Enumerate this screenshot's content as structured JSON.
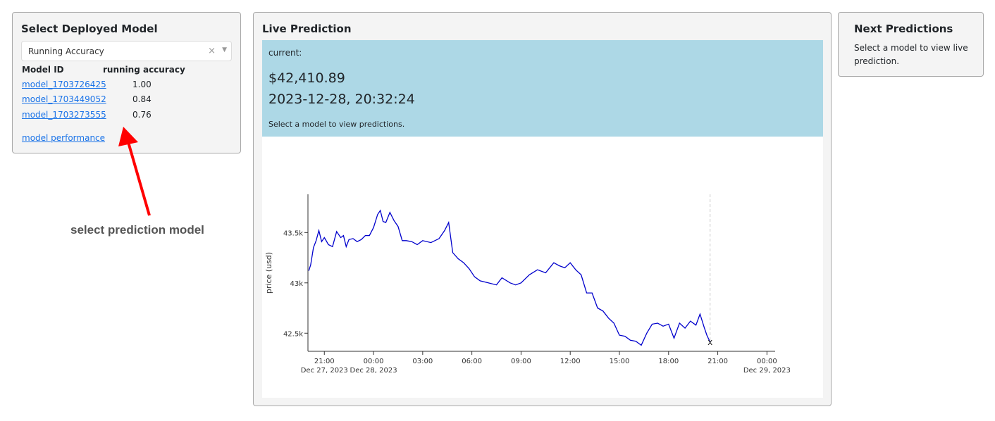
{
  "select_panel": {
    "title": "Select Deployed Model",
    "dropdown_value": "Running Accuracy",
    "clear_glyph": "×",
    "caret_glyph": "▼",
    "table_headers": [
      "Model ID",
      "running accuracy"
    ],
    "rows": [
      {
        "model_id": "model_1703726425",
        "accuracy": "1.00"
      },
      {
        "model_id": "model_1703449052",
        "accuracy": "0.84"
      },
      {
        "model_id": "model_1703273555",
        "accuracy": "0.76"
      }
    ],
    "performance_link": "model performance"
  },
  "annotation": {
    "text": "select prediction model",
    "arrow_color": "#ff0000"
  },
  "live_panel": {
    "title": "Live Prediction",
    "current_label": "current:",
    "price": "$42,410.89",
    "timestamp": "2023-12-28, 20:32:24",
    "message": "Select a model to view predictions.",
    "info_bg": "#add8e6"
  },
  "next_panel": {
    "title": "Next Predictions",
    "note": "Select a model to view live prediction."
  },
  "chart_data": {
    "type": "line",
    "ylabel": "price (usd)",
    "x_range": [
      "2023-12-27 20:00",
      "2023-12-29 00:30"
    ],
    "ylim": [
      42320,
      43880
    ],
    "y_ticks": [
      {
        "value": 42500,
        "label": "42.5k"
      },
      {
        "value": 43000,
        "label": "43k"
      },
      {
        "value": 43500,
        "label": "43.5k"
      }
    ],
    "x_ticks": [
      {
        "time": "2023-12-27 21:00",
        "label": "21:00",
        "sublabel": "Dec 27, 2023"
      },
      {
        "time": "2023-12-28 00:00",
        "label": "00:00",
        "sublabel": "Dec 28, 2023"
      },
      {
        "time": "2023-12-28 03:00",
        "label": "03:00",
        "sublabel": ""
      },
      {
        "time": "2023-12-28 06:00",
        "label": "06:00",
        "sublabel": ""
      },
      {
        "time": "2023-12-28 09:00",
        "label": "09:00",
        "sublabel": ""
      },
      {
        "time": "2023-12-28 12:00",
        "label": "12:00",
        "sublabel": ""
      },
      {
        "time": "2023-12-28 15:00",
        "label": "15:00",
        "sublabel": ""
      },
      {
        "time": "2023-12-28 18:00",
        "label": "18:00",
        "sublabel": ""
      },
      {
        "time": "2023-12-28 21:00",
        "label": "21:00",
        "sublabel": ""
      },
      {
        "time": "2023-12-29 00:00",
        "label": "00:00",
        "sublabel": "Dec 29, 2023"
      }
    ],
    "line_color": "#0000cc",
    "current_marker": {
      "time": "2023-12-28 20:32",
      "value": 42410.89,
      "symbol": "x"
    },
    "series": [
      {
        "x": [
          "2023-12-27 20:03",
          "2023-12-27 20:10",
          "2023-12-27 20:20",
          "2023-12-27 20:30",
          "2023-12-27 20:40",
          "2023-12-27 20:50",
          "2023-12-27 21:00",
          "2023-12-27 21:15",
          "2023-12-27 21:30",
          "2023-12-27 21:45",
          "2023-12-27 22:00",
          "2023-12-27 22:10",
          "2023-12-27 22:20",
          "2023-12-27 22:30",
          "2023-12-27 22:45",
          "2023-12-27 23:00",
          "2023-12-27 23:15",
          "2023-12-27 23:30",
          "2023-12-27 23:45",
          "2023-12-28 00:00",
          "2023-12-28 00:15",
          "2023-12-28 00:25",
          "2023-12-28 00:35",
          "2023-12-28 00:45",
          "2023-12-28 01:00",
          "2023-12-28 01:15",
          "2023-12-28 01:30",
          "2023-12-28 01:45",
          "2023-12-28 02:00",
          "2023-12-28 02:20",
          "2023-12-28 02:40",
          "2023-12-28 03:00",
          "2023-12-28 03:30",
          "2023-12-28 04:00",
          "2023-12-28 04:20",
          "2023-12-28 04:35",
          "2023-12-28 04:50",
          "2023-12-28 05:10",
          "2023-12-28 05:30",
          "2023-12-28 05:50",
          "2023-12-28 06:10",
          "2023-12-28 06:30",
          "2023-12-28 07:00",
          "2023-12-28 07:30",
          "2023-12-28 07:50",
          "2023-12-28 08:20",
          "2023-12-28 08:40",
          "2023-12-28 09:00",
          "2023-12-28 09:30",
          "2023-12-28 10:00",
          "2023-12-28 10:30",
          "2023-12-28 11:00",
          "2023-12-28 11:20",
          "2023-12-28 11:40",
          "2023-12-28 12:00",
          "2023-12-28 12:20",
          "2023-12-28 12:40",
          "2023-12-28 13:00",
          "2023-12-28 13:20",
          "2023-12-28 13:40",
          "2023-12-28 14:00",
          "2023-12-28 14:20",
          "2023-12-28 14:40",
          "2023-12-28 15:00",
          "2023-12-28 15:20",
          "2023-12-28 15:40",
          "2023-12-28 16:00",
          "2023-12-28 16:20",
          "2023-12-28 16:40",
          "2023-12-28 17:00",
          "2023-12-28 17:20",
          "2023-12-28 17:40",
          "2023-12-28 18:00",
          "2023-12-28 18:20",
          "2023-12-28 18:40",
          "2023-12-28 19:00",
          "2023-12-28 19:20",
          "2023-12-28 19:40",
          "2023-12-28 19:55",
          "2023-12-28 20:10",
          "2023-12-28 20:20",
          "2023-12-28 20:32"
        ],
        "values": [
          43120,
          43180,
          43350,
          43420,
          43520,
          43410,
          43450,
          43380,
          43360,
          43510,
          43450,
          43470,
          43360,
          43430,
          43440,
          43410,
          43430,
          43470,
          43470,
          43550,
          43680,
          43720,
          43610,
          43600,
          43700,
          43620,
          43560,
          43420,
          43420,
          43410,
          43380,
          43420,
          43400,
          43440,
          43520,
          43600,
          43300,
          43240,
          43200,
          43140,
          43060,
          43020,
          43000,
          42980,
          43050,
          43000,
          42980,
          43000,
          43080,
          43130,
          43100,
          43200,
          43170,
          43150,
          43200,
          43130,
          43080,
          42900,
          42900,
          42750,
          42720,
          42650,
          42600,
          42480,
          42470,
          42430,
          42420,
          42380,
          42500,
          42590,
          42600,
          42570,
          42590,
          42450,
          42600,
          42550,
          42620,
          42580,
          42690,
          42560,
          42480,
          42410.89
        ]
      }
    ]
  }
}
